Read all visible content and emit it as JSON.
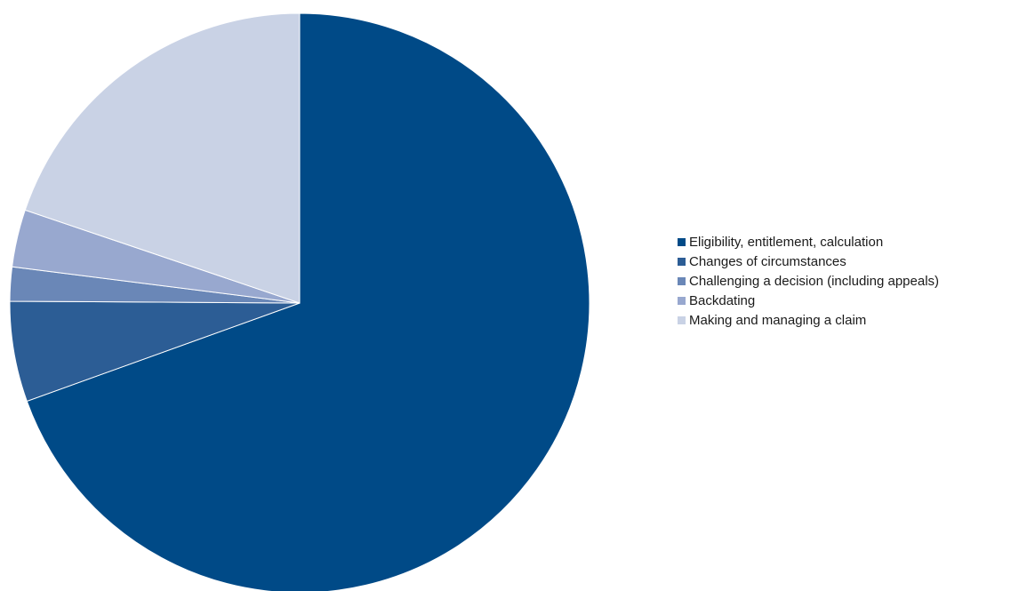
{
  "chart_data": {
    "type": "pie",
    "title": "",
    "start_angle_deg": 0,
    "direction": "clockwise",
    "legend_position": "right",
    "slices": [
      {
        "label": "Eligibility, entitlement, calculation",
        "value": 69.5,
        "color": "#004a87"
      },
      {
        "label": "Changes of circumstances",
        "value": 5.6,
        "color": "#2c5d95"
      },
      {
        "label": "Challenging a decision (including appeals)",
        "value": 1.9,
        "color": "#6a87b7"
      },
      {
        "label": "Backdating",
        "value": 3.2,
        "color": "#98a8cf"
      },
      {
        "label": "Making and managing a claim",
        "value": 19.8,
        "color": "#c9d2e5"
      }
    ]
  }
}
